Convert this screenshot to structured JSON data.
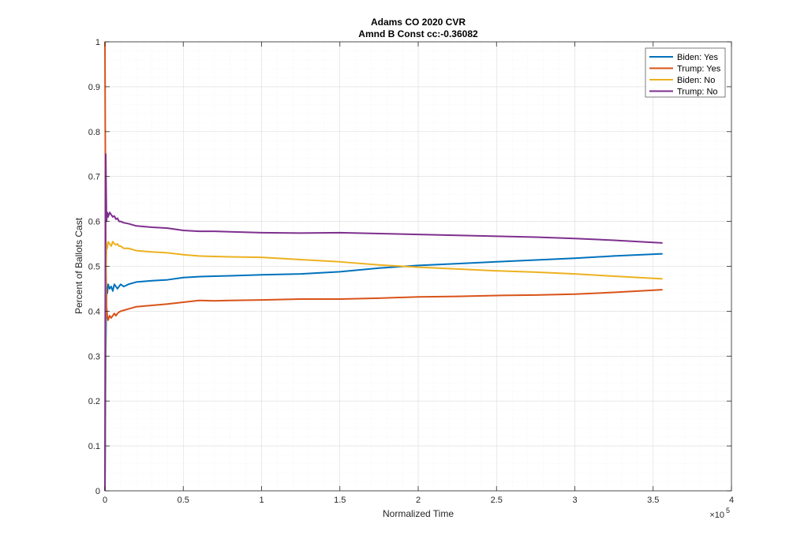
{
  "chart_data": {
    "type": "line",
    "title": "Adams CO 2020 CVR",
    "subtitle": "Amnd B Const cc:-0.36082",
    "xlabel": "Normalized Time",
    "ylabel": "Percent of Ballots Cast",
    "xlim": [
      0,
      400000
    ],
    "ylim": [
      0,
      1
    ],
    "x_ticks": [
      0,
      50000,
      100000,
      150000,
      200000,
      250000,
      300000,
      350000,
      400000
    ],
    "x_tick_labels": [
      "0",
      "0.5",
      "1",
      "1.5",
      "2",
      "2.5",
      "3",
      "3.5",
      "4"
    ],
    "x_exponent_label": "×10",
    "x_exponent_power": "5",
    "y_ticks": [
      0,
      0.1,
      0.2,
      0.3,
      0.4,
      0.5,
      0.6,
      0.7,
      0.8,
      0.9,
      1
    ],
    "y_tick_labels": [
      "0",
      "0.1",
      "0.2",
      "0.3",
      "0.4",
      "0.5",
      "0.6",
      "0.7",
      "0.8",
      "0.9",
      "1"
    ],
    "grid": true,
    "minor_grid": true,
    "legend_position": "top-right",
    "series": [
      {
        "name": "Biden: Yes",
        "color": "#0072BD",
        "x": [
          0,
          200,
          500,
          1000,
          1500,
          2000,
          3000,
          4000,
          5000,
          6000,
          7000,
          8000,
          9000,
          10000,
          12000,
          15000,
          20000,
          30000,
          40000,
          50000,
          60000,
          70000,
          80000,
          100000,
          125000,
          150000,
          175000,
          200000,
          225000,
          250000,
          275000,
          300000,
          325000,
          356000
        ],
        "y": [
          0.0,
          0.1,
          0.3,
          0.45,
          0.44,
          0.46,
          0.45,
          0.455,
          0.445,
          0.46,
          0.455,
          0.45,
          0.455,
          0.46,
          0.455,
          0.46,
          0.465,
          0.468,
          0.47,
          0.475,
          0.477,
          0.478,
          0.479,
          0.481,
          0.483,
          0.488,
          0.496,
          0.502,
          0.506,
          0.51,
          0.514,
          0.518,
          0.523,
          0.528
        ]
      },
      {
        "name": "Trump: Yes",
        "color": "#D95319",
        "x": [
          0,
          200,
          500,
          1000,
          1500,
          2000,
          3000,
          4000,
          5000,
          6000,
          7000,
          8000,
          9000,
          10000,
          12000,
          15000,
          20000,
          30000,
          40000,
          50000,
          60000,
          70000,
          80000,
          100000,
          125000,
          150000,
          175000,
          200000,
          225000,
          250000,
          275000,
          300000,
          325000,
          356000
        ],
        "y": [
          1.0,
          0.8,
          0.55,
          0.41,
          0.39,
          0.38,
          0.39,
          0.385,
          0.39,
          0.395,
          0.39,
          0.395,
          0.398,
          0.4,
          0.402,
          0.405,
          0.41,
          0.413,
          0.416,
          0.42,
          0.424,
          0.423,
          0.424,
          0.425,
          0.427,
          0.427,
          0.429,
          0.432,
          0.433,
          0.435,
          0.436,
          0.438,
          0.442,
          0.448
        ]
      },
      {
        "name": "Biden: No",
        "color": "#EDB120",
        "x": [
          0,
          200,
          500,
          1000,
          1500,
          2000,
          3000,
          4000,
          5000,
          6000,
          7000,
          8000,
          9000,
          10000,
          12000,
          15000,
          20000,
          30000,
          40000,
          50000,
          60000,
          70000,
          80000,
          100000,
          125000,
          150000,
          175000,
          200000,
          225000,
          250000,
          275000,
          300000,
          325000,
          356000
        ],
        "y": [
          0.0,
          0.2,
          0.45,
          0.55,
          0.54,
          0.555,
          0.55,
          0.545,
          0.555,
          0.55,
          0.548,
          0.55,
          0.545,
          0.545,
          0.54,
          0.54,
          0.535,
          0.532,
          0.53,
          0.526,
          0.523,
          0.522,
          0.521,
          0.52,
          0.515,
          0.51,
          0.503,
          0.498,
          0.494,
          0.49,
          0.487,
          0.483,
          0.478,
          0.472
        ]
      },
      {
        "name": "Trump: No",
        "color": "#7E2F8E",
        "x": [
          0,
          200,
          500,
          1000,
          1500,
          2000,
          3000,
          4000,
          5000,
          6000,
          7000,
          8000,
          9000,
          10000,
          12000,
          15000,
          20000,
          30000,
          40000,
          50000,
          60000,
          70000,
          80000,
          100000,
          125000,
          150000,
          175000,
          200000,
          225000,
          250000,
          275000,
          300000,
          325000,
          356000
        ],
        "y": [
          0.0,
          0.4,
          0.75,
          0.6,
          0.62,
          0.61,
          0.62,
          0.615,
          0.61,
          0.612,
          0.605,
          0.607,
          0.6,
          0.6,
          0.597,
          0.595,
          0.59,
          0.587,
          0.585,
          0.58,
          0.578,
          0.578,
          0.577,
          0.575,
          0.574,
          0.575,
          0.573,
          0.571,
          0.569,
          0.567,
          0.565,
          0.562,
          0.558,
          0.552
        ]
      }
    ]
  }
}
